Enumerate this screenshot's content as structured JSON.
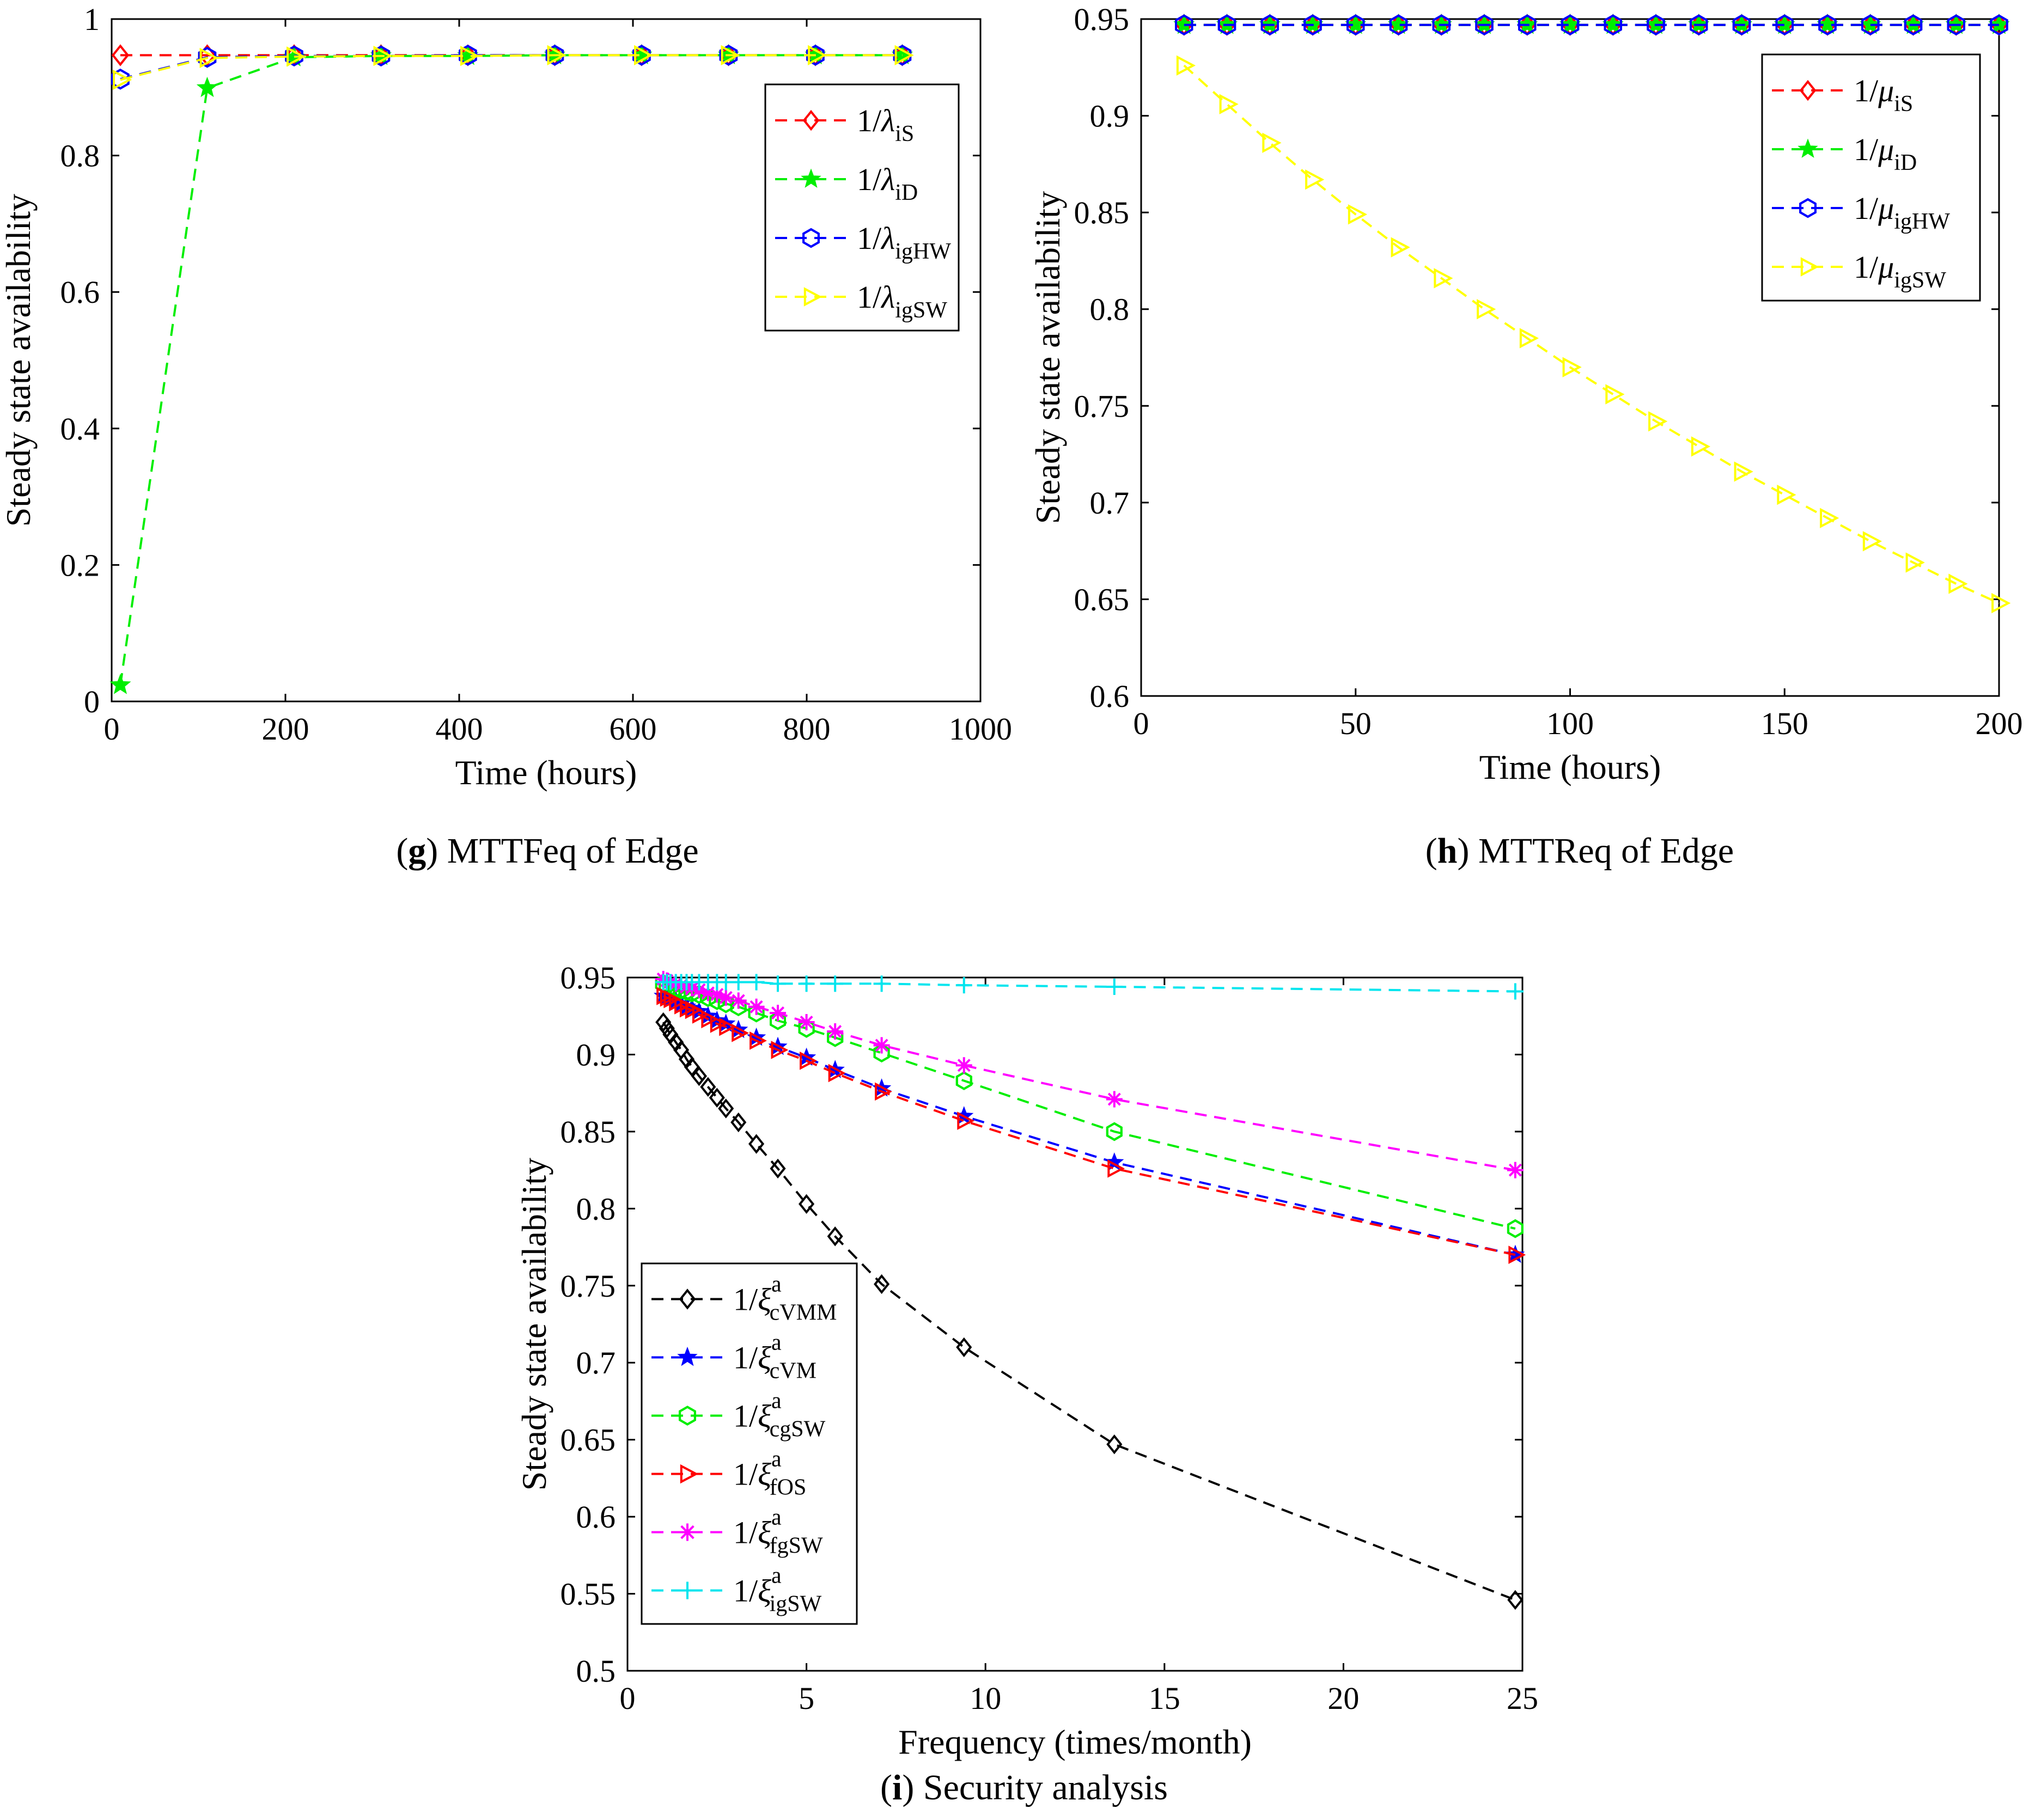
{
  "panels": [
    {
      "letter": "g",
      "caption": "MTTFeq of Edge",
      "chart_data": {
        "type": "line",
        "xlabel": "Time (hours)",
        "ylabel": "Steady state availability",
        "xlim": [
          0,
          1000
        ],
        "ylim": [
          0,
          1
        ],
        "xticks": [
          0,
          200,
          400,
          600,
          800,
          1000
        ],
        "yticks": [
          0,
          0.2,
          0.4,
          0.6,
          0.8,
          1
        ],
        "xtick_labels": [
          "0",
          "200",
          "400",
          "600",
          "800",
          "1000"
        ],
        "ytick_labels": [
          "0",
          "0.2",
          "0.4",
          "0.6",
          "0.8",
          "1"
        ],
        "grid": false,
        "legend_position": "top-right",
        "x": [
          10,
          110,
          210,
          310,
          410,
          510,
          610,
          710,
          810,
          910
        ],
        "series": [
          {
            "prefix": "1/",
            "symbol": "λ",
            "sub": "iS",
            "sup": "",
            "color": "#ff0000",
            "marker": "diamond",
            "values": [
              0.947,
              0.947,
              0.947,
              0.947,
              0.947,
              0.947,
              0.947,
              0.947,
              0.947,
              0.947
            ]
          },
          {
            "prefix": "1/",
            "symbol": "λ",
            "sub": "iD",
            "sup": "",
            "color": "#00ee00",
            "marker": "star5",
            "values": [
              0.024,
              0.899,
              0.944,
              0.946,
              0.946,
              0.947,
              0.947,
              0.947,
              0.947,
              0.947
            ]
          },
          {
            "prefix": "1/",
            "symbol": "λ",
            "sub": "igHW",
            "sup": "",
            "color": "#0000ff",
            "marker": "hexagram",
            "values": [
              0.912,
              0.944,
              0.946,
              0.946,
              0.947,
              0.947,
              0.947,
              0.947,
              0.947,
              0.947
            ]
          },
          {
            "prefix": "1/",
            "symbol": "λ",
            "sub": "igSW",
            "sup": "",
            "color": "#ffff00",
            "marker": "triangle-right",
            "values": [
              0.911,
              0.943,
              0.945,
              0.946,
              0.946,
              0.947,
              0.947,
              0.947,
              0.947,
              0.947
            ]
          }
        ]
      }
    },
    {
      "letter": "h",
      "caption": "MTTReq of Edge",
      "chart_data": {
        "type": "line",
        "xlabel": "Time (hours)",
        "ylabel": "Steady state availability",
        "xlim": [
          0,
          200
        ],
        "ylim": [
          0.6,
          0.95
        ],
        "xticks": [
          0,
          50,
          100,
          150,
          200
        ],
        "yticks": [
          0.6,
          0.65,
          0.7,
          0.75,
          0.8,
          0.85,
          0.9,
          0.95
        ],
        "xtick_labels": [
          "0",
          "50",
          "100",
          "150",
          "200"
        ],
        "ytick_labels": [
          "0.6",
          "0.65",
          "0.7",
          "0.75",
          "0.8",
          "0.85",
          "0.9",
          "0.95"
        ],
        "grid": false,
        "legend_position": "top-right",
        "x": [
          10,
          20,
          30,
          40,
          50,
          60,
          70,
          80,
          90,
          100,
          110,
          120,
          130,
          140,
          150,
          160,
          170,
          180,
          190,
          200
        ],
        "series": [
          {
            "prefix": "1/",
            "symbol": "μ",
            "sub": "iS",
            "sup": "",
            "color": "#ff0000",
            "marker": "diamond",
            "values": [
              0.947,
              0.947,
              0.947,
              0.947,
              0.947,
              0.947,
              0.947,
              0.947,
              0.947,
              0.947,
              0.947,
              0.947,
              0.947,
              0.947,
              0.947,
              0.947,
              0.947,
              0.947,
              0.947,
              0.947
            ]
          },
          {
            "prefix": "1/",
            "symbol": "μ",
            "sub": "iD",
            "sup": "",
            "color": "#00ee00",
            "marker": "star5",
            "values": [
              0.947,
              0.947,
              0.947,
              0.947,
              0.947,
              0.947,
              0.947,
              0.947,
              0.947,
              0.947,
              0.947,
              0.947,
              0.947,
              0.947,
              0.947,
              0.947,
              0.947,
              0.947,
              0.947,
              0.947
            ]
          },
          {
            "prefix": "1/",
            "symbol": "μ",
            "sub": "igHW",
            "sup": "",
            "color": "#0000ff",
            "marker": "hexagram",
            "values": [
              0.947,
              0.947,
              0.947,
              0.947,
              0.947,
              0.947,
              0.947,
              0.947,
              0.947,
              0.947,
              0.947,
              0.947,
              0.947,
              0.947,
              0.947,
              0.947,
              0.947,
              0.947,
              0.947,
              0.947
            ]
          },
          {
            "prefix": "1/",
            "symbol": "μ",
            "sub": "igSW",
            "sup": "",
            "color": "#ffff00",
            "marker": "triangle-right",
            "values": [
              0.926,
              0.906,
              0.886,
              0.867,
              0.849,
              0.832,
              0.816,
              0.8,
              0.785,
              0.77,
              0.756,
              0.742,
              0.729,
              0.716,
              0.704,
              0.692,
              0.68,
              0.669,
              0.658,
              0.648
            ]
          }
        ]
      }
    },
    {
      "letter": "i",
      "caption": "Security analysis",
      "chart_data": {
        "type": "line",
        "xlabel": "Frequency (times/month)",
        "ylabel": "Steady state availability",
        "xlim": [
          0,
          25
        ],
        "ylim": [
          0.5,
          0.95
        ],
        "xticks": [
          0,
          5,
          10,
          15,
          20,
          25
        ],
        "yticks": [
          0.5,
          0.55,
          0.6,
          0.65,
          0.7,
          0.75,
          0.8,
          0.85,
          0.9,
          0.95
        ],
        "xtick_labels": [
          "0",
          "5",
          "10",
          "15",
          "20",
          "25"
        ],
        "ytick_labels": [
          "0.5",
          "0.55",
          "0.6",
          "0.65",
          "0.7",
          "0.75",
          "0.8",
          "0.85",
          "0.9",
          "0.95"
        ],
        "grid": false,
        "legend_position": "bottom-left",
        "x": [
          1.0,
          1.1,
          1.2,
          1.35,
          1.5,
          1.65,
          1.8,
          2.0,
          2.25,
          2.5,
          2.75,
          3.1,
          3.6,
          4.2,
          5.0,
          5.8,
          7.1,
          9.4,
          13.6,
          24.8
        ],
        "series": [
          {
            "prefix": "1/",
            "symbol": "ξ",
            "sub": "cVMM",
            "sup": "a",
            "color": "#000000",
            "marker": "diamond",
            "values": [
              0.921,
              0.917,
              0.913,
              0.908,
              0.903,
              0.897,
              0.892,
              0.886,
              0.879,
              0.872,
              0.865,
              0.856,
              0.842,
              0.826,
              0.803,
              0.782,
              0.751,
              0.71,
              0.647,
              0.546
            ]
          },
          {
            "prefix": "1/",
            "symbol": "ξ",
            "sub": "cVM",
            "sup": "a",
            "color": "#0000ff",
            "marker": "star5",
            "values": [
              0.938,
              0.937,
              0.936,
              0.935,
              0.933,
              0.931,
              0.93,
              0.928,
              0.925,
              0.922,
              0.92,
              0.916,
              0.911,
              0.905,
              0.898,
              0.89,
              0.878,
              0.86,
              0.83,
              0.77
            ]
          },
          {
            "prefix": "1/",
            "symbol": "ξ",
            "sub": "cgSW",
            "sup": "a",
            "color": "#00ee00",
            "marker": "hexagram",
            "values": [
              0.946,
              0.945,
              0.944,
              0.943,
              0.942,
              0.941,
              0.94,
              0.939,
              0.937,
              0.935,
              0.933,
              0.931,
              0.927,
              0.922,
              0.917,
              0.911,
              0.901,
              0.883,
              0.85,
              0.787
            ]
          },
          {
            "prefix": "1/",
            "symbol": "ξ",
            "sub": "fOS",
            "sup": "a",
            "color": "#ff0000",
            "marker": "triangle-right",
            "values": [
              0.938,
              0.937,
              0.936,
              0.934,
              0.932,
              0.93,
              0.929,
              0.926,
              0.923,
              0.92,
              0.918,
              0.914,
              0.909,
              0.903,
              0.896,
              0.888,
              0.876,
              0.857,
              0.826,
              0.77
            ]
          },
          {
            "prefix": "1/",
            "symbol": "ξ",
            "sub": "fgSW",
            "sup": "a",
            "color": "#ff00ff",
            "marker": "asterisk",
            "values": [
              0.949,
              0.948,
              0.947,
              0.946,
              0.945,
              0.944,
              0.943,
              0.942,
              0.94,
              0.939,
              0.937,
              0.935,
              0.931,
              0.927,
              0.921,
              0.915,
              0.906,
              0.893,
              0.871,
              0.825
            ]
          },
          {
            "prefix": "1/",
            "symbol": "ξ",
            "sub": "igSW",
            "sup": "a",
            "color": "#00e5ee",
            "marker": "plus",
            "values": [
              0.947,
              0.947,
              0.947,
              0.947,
              0.947,
              0.947,
              0.947,
              0.947,
              0.947,
              0.947,
              0.947,
              0.947,
              0.947,
              0.946,
              0.946,
              0.946,
              0.946,
              0.945,
              0.944,
              0.941
            ]
          }
        ]
      }
    }
  ]
}
